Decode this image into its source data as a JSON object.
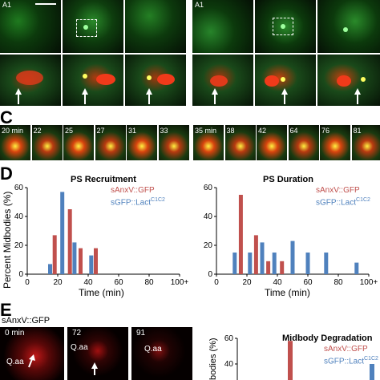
{
  "panels": {
    "top_left_label": "A1",
    "top_right_label": "A1",
    "c_letter": "C",
    "d_letter": "D",
    "e_letter": "E"
  },
  "timelapse_c": {
    "left_times": [
      "20 min",
      "22",
      "25",
      "27",
      "31",
      "33"
    ],
    "right_times": [
      "35 min",
      "38",
      "42",
      "64",
      "76",
      "81"
    ]
  },
  "panel_e": {
    "title": "sAnxV::GFP",
    "frames": [
      {
        "time": "0 min",
        "label": "Q.aa"
      },
      {
        "time": "72",
        "label": "Q.aa"
      },
      {
        "time": "91",
        "label": "Q.aa"
      }
    ]
  },
  "legend": {
    "red": "sAnxV::GFP",
    "blue_prefix": "sGFP::Lact",
    "blue_sup": "C1C2"
  },
  "colors": {
    "red": "#c0504d",
    "blue": "#4f81bd",
    "green": "#2ecc2e"
  },
  "axis_labels": {
    "ylabel": "Percent Midbodies (%)",
    "xlabel": "Time (min)",
    "e_ylabel_partial": "bodies (%)"
  },
  "chart_data": [
    {
      "type": "bar",
      "title": "PS Recruitment",
      "xlabel": "Time (min)",
      "ylabel": "Percent Midbodies (%)",
      "xlim": [
        0,
        100
      ],
      "ylim": [
        0,
        60
      ],
      "x_ticks": [
        "0",
        "20",
        "40",
        "60",
        "80",
        "100+"
      ],
      "y_ticks": [
        "0",
        "20",
        "40",
        "60"
      ],
      "series": [
        {
          "name": "sAnxV::GFP",
          "x": [
            18,
            28,
            35,
            45
          ],
          "values": [
            27,
            45,
            18,
            18
          ]
        },
        {
          "name": "sGFP::LactC1C2",
          "x": [
            15,
            23,
            31,
            42
          ],
          "values": [
            7,
            57,
            22,
            13
          ]
        }
      ]
    },
    {
      "type": "bar",
      "title": "PS Duration",
      "xlabel": "Time (min)",
      "xlim": [
        0,
        100
      ],
      "ylim": [
        0,
        60
      ],
      "x_ticks": [
        "0",
        "20",
        "40",
        "60",
        "80",
        "100+"
      ],
      "y_ticks": [
        "0",
        "20",
        "40",
        "60"
      ],
      "series": [
        {
          "name": "sAnxV::GFP",
          "x": [
            16,
            26,
            34,
            43
          ],
          "values": [
            55,
            27,
            9,
            9
          ]
        },
        {
          "name": "sGFP::LactC1C2",
          "x": [
            12,
            22,
            30,
            38,
            50,
            60,
            72,
            92
          ],
          "values": [
            15,
            15,
            22,
            15,
            23,
            15,
            15,
            8
          ]
        }
      ]
    },
    {
      "type": "bar",
      "title": "Midbody Degradation",
      "ylim": [
        0,
        60
      ],
      "y_ticks": [
        "40",
        "60"
      ],
      "series": [
        {
          "name": "sAnxV::GFP",
          "values": [
            58
          ]
        },
        {
          "name": "sGFP::LactC1C2",
          "values": [
            40
          ]
        }
      ]
    }
  ]
}
